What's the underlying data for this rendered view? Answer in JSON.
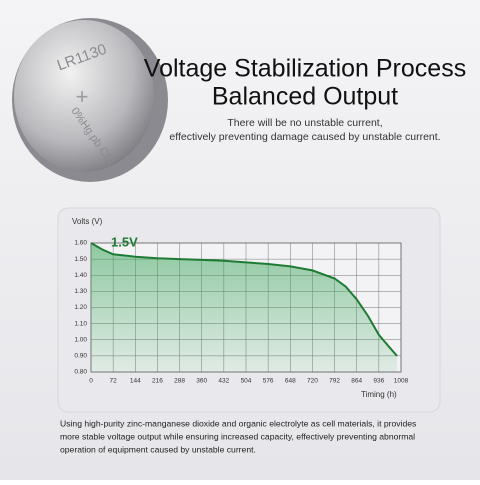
{
  "header": {
    "title_lines": [
      "Voltage Stabilization Process",
      "Balanced Output"
    ],
    "subtitle_lines": [
      "There will be no unstable current,",
      "effectively preventing damage caused by unstable current."
    ]
  },
  "battery": {
    "model": "LR1130",
    "marking": "0%Hg.pb CELL"
  },
  "chart_data": {
    "type": "line",
    "y_label": "Volts (V)",
    "x_label": "Timing (h)",
    "annotation": "1.5V",
    "x": [
      0,
      36,
      72,
      144,
      216,
      288,
      360,
      432,
      504,
      576,
      648,
      720,
      792,
      828,
      864,
      900,
      936,
      972,
      995
    ],
    "series": [
      {
        "name": "Voltage",
        "color": "#1e7b34",
        "values": [
          1.6,
          1.56,
          1.53,
          1.515,
          1.505,
          1.5,
          1.495,
          1.49,
          1.48,
          1.47,
          1.455,
          1.43,
          1.38,
          1.33,
          1.25,
          1.15,
          1.03,
          0.95,
          0.9
        ]
      }
    ],
    "xlim": [
      0,
      1008
    ],
    "ylim": [
      0.8,
      1.6
    ],
    "xticks": [
      0,
      72,
      144,
      216,
      288,
      360,
      432,
      504,
      576,
      648,
      720,
      792,
      864,
      936,
      1008
    ],
    "yticks": [
      {
        "value": 0.8,
        "label": "0.80"
      },
      {
        "value": 0.9,
        "label": "0.90"
      },
      {
        "value": 1.0,
        "label": "1.00"
      },
      {
        "value": 1.1,
        "label": "1.10"
      },
      {
        "value": 1.2,
        "label": "1.20"
      },
      {
        "value": 1.3,
        "label": "1.30"
      },
      {
        "value": 1.4,
        "label": "1.40"
      },
      {
        "value": 1.5,
        "label": "1.50"
      },
      {
        "value": 1.6,
        "label": "1.60"
      }
    ],
    "grid": true
  },
  "footer": {
    "lines": [
      "Using high-purity zinc-manganese dioxide and organic electrolyte as cell materials, it provides",
      "more stable voltage output while ensuring increased capacity, effectively preventing abnormal",
      "operation of equipment caused by unstable current."
    ]
  }
}
